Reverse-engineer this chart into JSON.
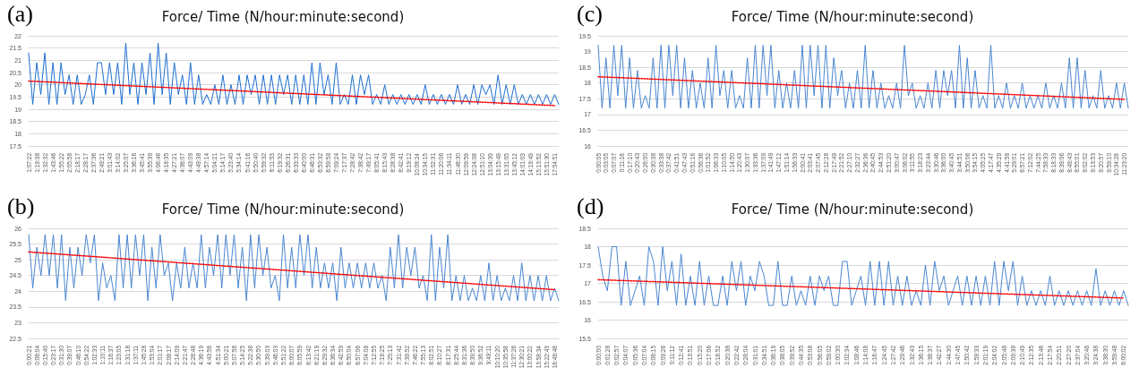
{
  "chart_data": [
    {
      "type": "line",
      "title": "Force/ Time (N/hour:minute:second)",
      "annotations": [
        "(a)"
      ],
      "ylim": [
        17.5,
        22
      ],
      "yticks": [
        17.5,
        18,
        18.5,
        19,
        19.5,
        20,
        20.5,
        21,
        21.5,
        22
      ],
      "grid": "y",
      "marker": "none",
      "categories": [
        "1:07:22",
        null,
        "1:19:38",
        null,
        "1:32:32",
        null,
        "1:43:46",
        null,
        "1:55:22",
        null,
        "2:05:58",
        null,
        "2:18:17",
        null,
        "2:28:17",
        null,
        "2:37:36",
        null,
        "2:49:21",
        null,
        "3:01:43",
        null,
        "3:14:02",
        null,
        "3:25:07",
        null,
        "3:36:16",
        null,
        "3:45:41",
        null,
        "3:55:39",
        null,
        "4:06:46",
        null,
        "4:18:35",
        null,
        "4:27:21",
        null,
        "4:36:07",
        null,
        "4:43:09",
        null,
        "4:49:38",
        null,
        "4:57:14",
        null,
        "5:04:21",
        null,
        "5:14:17",
        null,
        "5:23:40",
        null,
        "5:34:14",
        null,
        "5:41:16",
        null,
        "5:50:40",
        null,
        "5:59:32",
        null,
        "6:11:53",
        null,
        "6:19:32",
        null,
        "6:26:31",
        null,
        "6:33:33",
        null,
        "6:40:00",
        null,
        "6:46:31",
        null,
        "6:53:32",
        null,
        "6:59:58",
        null,
        "7:09:24",
        null,
        "7:17:37",
        null,
        "7:28:42",
        null,
        "7:38:42",
        null,
        "7:49:17",
        null,
        "8:05:41",
        null,
        "8:15:43",
        null,
        "8:28:38",
        null,
        "8:42:41",
        null,
        "9:19:12",
        null,
        "10:08:24",
        null,
        "10:34:15",
        null,
        "11:02:31",
        null,
        "11:20:06",
        null,
        "11:34:11",
        null,
        "11:46:30",
        null,
        "12:09:59",
        null,
        "12:24:08",
        null,
        "12:51:10",
        null,
        "13:04:39",
        null,
        "13:15:49",
        null,
        "13:31:05",
        null,
        "13:45:12",
        null,
        "14:01:03",
        null,
        "14:19:49",
        null,
        "15:13:52",
        null,
        "15:51:30",
        null,
        "17:54:51",
        null
      ],
      "series": [
        {
          "color": "#1f6fd0",
          "values": [
            21.3,
            19.2,
            20.9,
            19.6,
            21.3,
            19.2,
            20.9,
            19.2,
            20.9,
            19.6,
            20.4,
            19.2,
            20.4,
            19.2,
            19.6,
            20.4,
            19.2,
            20.9,
            20.9,
            19.6,
            20.9,
            19.6,
            20.9,
            19.2,
            21.7,
            19.6,
            20.9,
            19.2,
            20.9,
            19.6,
            21.3,
            19.2,
            21.7,
            19.6,
            21.3,
            19.2,
            20.9,
            19.6,
            20.4,
            19.2,
            20.9,
            19.2,
            20.4,
            19.2,
            19.6,
            19.2,
            20.0,
            19.2,
            20.4,
            19.2,
            20.0,
            19.2,
            20.4,
            19.2,
            20.4,
            19.6,
            20.4,
            19.2,
            20.4,
            19.2,
            20.4,
            19.2,
            20.4,
            19.6,
            20.4,
            19.2,
            20.4,
            19.2,
            20.4,
            19.2,
            20.9,
            19.2,
            20.9,
            19.6,
            20.4,
            19.2,
            20.9,
            19.2,
            19.6,
            19.2,
            20.4,
            19.2,
            20.4,
            19.6,
            20.4,
            19.2,
            19.6,
            19.2,
            20.0,
            19.2,
            19.6,
            19.2,
            19.6,
            19.2,
            19.6,
            19.2,
            19.6,
            19.2,
            20.0,
            19.2,
            19.6,
            19.2,
            19.6,
            19.2,
            19.6,
            19.2,
            20.0,
            19.2,
            19.6,
            19.2,
            20.0,
            19.2,
            20.0,
            19.6,
            20.0,
            19.2,
            20.4,
            19.2,
            20.0,
            19.2,
            20.0,
            19.2,
            19.6,
            19.2,
            19.6,
            19.2,
            19.6,
            19.2,
            19.6,
            19.2,
            19.6,
            19.2
          ]
        },
        {
          "color": "#ff0000",
          "line_style": "dotted",
          "x": [
            "1:07:22",
            "17:54:51"
          ],
          "values": [
            20.15,
            19.15
          ]
        }
      ]
    },
    {
      "type": "line",
      "title": "Force/ Time (N/hour:minute:second)",
      "annotations": [
        "(c)"
      ],
      "ylim": [
        16,
        19.5
      ],
      "yticks": [
        16,
        16.5,
        17,
        17.5,
        18,
        18.5,
        19,
        19.5
      ],
      "grid": "y",
      "marker": "none",
      "categories": [
        "0:00:05",
        null,
        "0:03:05",
        null,
        "0:07:07",
        null,
        "0:11:16",
        null,
        "0:17:10",
        null,
        "0:20:43",
        null,
        "0:26:00",
        null,
        "0:30:38",
        null,
        "0:33:38",
        null,
        "0:37:42",
        null,
        "0:41:51",
        null,
        "0:47:43",
        null,
        "0:51:16",
        null,
        "0:56:36",
        null,
        "1:01:52",
        null,
        "1:06:33",
        null,
        "1:10:05",
        null,
        "1:14:50",
        null,
        "1:20:43",
        null,
        "1:30:07",
        null,
        "1:33:36",
        null,
        "1:37:09",
        null,
        "1:41:49",
        null,
        "1:47:12",
        null,
        "1:51:14",
        null,
        "1:56:33",
        null,
        "2:00:41",
        null,
        "2:03:41",
        null,
        "2:07:45",
        null,
        "2:12:28",
        null,
        "2:17:49",
        null,
        "2:21:52",
        null,
        "2:27:10",
        null,
        "2:32:27",
        null,
        "2:36:36",
        null,
        "2:40:45",
        null,
        "2:44:53",
        null,
        "2:51:20",
        null,
        "3:00:47",
        null,
        "3:06:02",
        null,
        "3:11:55",
        null,
        "3:18:23",
        null,
        "3:23:44",
        null,
        "3:30:46",
        null,
        "3:36:00",
        null,
        "3:40:45",
        null,
        "3:44:51",
        null,
        "3:50:06",
        null,
        "3:54:15",
        null,
        "4:05:25",
        null,
        "4:17:47",
        null,
        "4:35:29",
        null,
        "4:41:58",
        null,
        "5:29:01",
        null,
        "6:57:21",
        null,
        "7:12:02",
        null,
        "7:44:25",
        null,
        "7:58:33",
        null,
        "8:18:33",
        null,
        "8:39:06",
        null,
        "8:49:43",
        null,
        "8:55:01",
        null,
        "9:02:02",
        null,
        "9:13:53",
        null,
        "9:20:57",
        null,
        "9:59:10",
        null,
        "10:34:28",
        null,
        "11:23:20",
        null
      ],
      "series": [
        {
          "color": "#4a86d0",
          "values": [
            19.2,
            17.2,
            18.8,
            17.2,
            19.2,
            17.6,
            19.2,
            17.2,
            18.8,
            17.2,
            18.4,
            17.2,
            17.6,
            17.2,
            18.8,
            17.2,
            19.2,
            17.2,
            19.2,
            17.6,
            19.2,
            17.2,
            18.8,
            17.2,
            18.4,
            17.2,
            18.0,
            17.2,
            18.8,
            17.2,
            19.2,
            17.6,
            18.4,
            17.2,
            18.4,
            17.2,
            17.6,
            17.2,
            18.8,
            17.2,
            19.2,
            17.2,
            19.2,
            17.6,
            19.2,
            17.2,
            18.4,
            17.2,
            18.0,
            17.2,
            18.4,
            17.2,
            19.2,
            17.2,
            19.2,
            17.6,
            19.2,
            17.2,
            19.2,
            17.2,
            18.8,
            17.6,
            18.4,
            17.2,
            18.0,
            17.2,
            18.4,
            17.2,
            19.2,
            17.2,
            18.4,
            17.2,
            18.0,
            17.2,
            17.6,
            17.2,
            18.0,
            17.2,
            19.2,
            17.6,
            18.0,
            17.2,
            17.6,
            17.2,
            18.0,
            17.2,
            18.4,
            17.2,
            18.4,
            17.6,
            18.4,
            17.2,
            19.2,
            17.2,
            18.8,
            17.2,
            18.4,
            17.2,
            17.6,
            17.2,
            19.2,
            17.2,
            17.6,
            17.2,
            18.0,
            17.2,
            17.6,
            17.2,
            18.0,
            17.2,
            17.6,
            17.2,
            17.6,
            17.2,
            18.0,
            17.2,
            17.6,
            17.2,
            18.0,
            17.2,
            18.8,
            17.2,
            18.8,
            17.2,
            18.4,
            17.2,
            17.6,
            17.2,
            18.4,
            17.2,
            17.6,
            17.2,
            18.0,
            17.2,
            18.0,
            17.2
          ]
        },
        {
          "color": "#ff0000",
          "line_style": "dotted",
          "x": [
            "0:00:05",
            "11:23:20"
          ],
          "values": [
            18.2,
            17.48
          ]
        }
      ]
    },
    {
      "type": "line",
      "title": "Force/ Time (N/hour:minute:second)",
      "annotations": [
        "(b)"
      ],
      "ylim": [
        22.5,
        26
      ],
      "yticks": [
        22.5,
        23,
        23.5,
        24,
        24.5,
        25,
        25.5,
        26
      ],
      "grid": "y",
      "marker": "none",
      "categories": [
        "0:00:21",
        null,
        "0:08:04",
        null,
        "0:15:40",
        null,
        "0:23:17",
        null,
        "0:31:30",
        null,
        "0:39:07",
        null,
        "0:46:10",
        null,
        "0:54:22",
        null,
        "1:02:33",
        null,
        "1:10:11",
        null,
        "1:16:37",
        null,
        "1:23:05",
        null,
        "1:31:18",
        null,
        "1:37:11",
        null,
        "1:45:28",
        null,
        "1:53:04",
        null,
        "2:01:17",
        null,
        "2:08:17",
        null,
        "2:14:09",
        null,
        "2:21:47",
        null,
        "2:28:48",
        null,
        "4:36:19",
        null,
        "4:43:56",
        null,
        "4:51:34",
        null,
        "5:00:21",
        null,
        "5:07:58",
        null,
        "5:14:25",
        null,
        "5:22:38",
        null,
        "5:30:50",
        null,
        "5:39:03",
        null,
        "5:46:03",
        null,
        "5:51:22",
        null,
        "6:00:07",
        null,
        "6:05:59",
        null,
        "6:13:42",
        null,
        "6:21:19",
        null,
        "6:29:32",
        null,
        "6:36:34",
        null,
        "6:42:59",
        null,
        "6:50:04",
        null,
        "6:57:06",
        null,
        "7:04:08",
        null,
        "7:12:55",
        null,
        "7:19:25",
        null,
        "7:25:13",
        null,
        "7:31:42",
        null,
        "7:39:52",
        null,
        "7:46:22",
        null,
        "7:55:13",
        null,
        "8:02:51",
        null,
        "8:10:27",
        null,
        "8:17:31",
        null,
        "8:25:44",
        null,
        "8:31:36",
        null,
        "8:39:50",
        null,
        "9:36:52",
        null,
        "9:49:11",
        null,
        "10:10:20",
        null,
        "10:35:58",
        null,
        "11:37:26",
        null,
        "12:30:21",
        null,
        "13:00:22",
        null,
        "13:58:34",
        null,
        "15:22:43",
        null,
        "16:49:48",
        null
      ],
      "series": [
        {
          "color": "#4a86d0",
          "values": [
            25.8,
            24.1,
            25.4,
            24.5,
            25.8,
            24.5,
            25.8,
            24.1,
            25.8,
            23.7,
            25.4,
            24.1,
            25.4,
            24.5,
            25.8,
            24.9,
            25.8,
            23.7,
            24.9,
            24.1,
            24.5,
            23.7,
            25.8,
            24.1,
            25.8,
            24.1,
            25.8,
            24.5,
            25.8,
            23.7,
            25.4,
            24.1,
            25.8,
            24.5,
            24.9,
            23.7,
            24.9,
            24.1,
            25.4,
            24.1,
            24.9,
            24.1,
            25.8,
            24.1,
            25.4,
            24.5,
            25.8,
            24.1,
            25.8,
            24.5,
            25.8,
            24.1,
            25.4,
            23.7,
            25.8,
            24.1,
            25.8,
            24.5,
            25.4,
            24.1,
            24.5,
            23.7,
            25.8,
            24.1,
            25.4,
            24.1,
            25.8,
            24.5,
            25.8,
            24.1,
            25.4,
            24.1,
            24.9,
            24.1,
            24.9,
            23.7,
            25.4,
            24.1,
            24.9,
            24.1,
            24.9,
            24.1,
            24.9,
            24.1,
            24.9,
            24.1,
            24.5,
            23.7,
            25.4,
            24.1,
            25.8,
            24.1,
            25.4,
            24.5,
            25.4,
            24.1,
            24.5,
            23.7,
            25.8,
            23.7,
            25.4,
            24.1,
            25.8,
            23.7,
            24.5,
            23.7,
            24.5,
            23.7,
            24.1,
            23.7,
            24.5,
            23.7,
            24.9,
            23.7,
            24.5,
            23.7,
            24.1,
            23.7,
            24.5,
            23.7,
            24.9,
            23.7,
            24.5,
            23.7,
            24.5,
            23.7,
            24.5,
            23.7,
            24.1,
            23.7
          ]
        },
        {
          "color": "#ff0000",
          "line_style": "dotted",
          "x": [
            "0:00:21",
            "16:49:48"
          ],
          "values": [
            25.25,
            24.05
          ]
        }
      ]
    },
    {
      "type": "line",
      "title": "Force/ Time (N/hour:minute:second)",
      "annotations": [
        "(d)"
      ],
      "ylim": [
        15.5,
        18.5
      ],
      "yticks": [
        15.5,
        16,
        16.5,
        17,
        17.5,
        18,
        18.5
      ],
      "grid": "y",
      "marker": "none",
      "categories": [
        "0:00:00",
        null,
        "0:01:28",
        null,
        "0:02:57",
        null,
        "0:04:07",
        null,
        "0:05:36",
        null,
        "0:07:04",
        null,
        "0:08:15",
        null,
        "0:09:26",
        null,
        "0:11:12",
        null,
        "0:12:41",
        null,
        "0:13:51",
        null,
        "0:15:20",
        null,
        "0:17:06",
        null,
        "0:18:52",
        null,
        "0:20:38",
        null,
        "0:22:42",
        null,
        "0:28:04",
        null,
        "0:31:01",
        null,
        "0:34:51",
        null,
        "0:36:19",
        null,
        "0:38:05",
        null,
        "0:39:52",
        null,
        "0:44:35",
        null,
        "0:53:08",
        null,
        "0:56:05",
        null,
        "0:59:02",
        null,
        "1:00:30",
        null,
        "1:02:34",
        null,
        "1:08:46",
        null,
        "1:14:08",
        null,
        "1:16:47",
        null,
        "1:24:45",
        null,
        "1:27:42",
        null,
        "1:29:46",
        null,
        "1:32:43",
        null,
        "1:36:15",
        null,
        "1:38:37",
        null,
        "1:42:27",
        null,
        "1:44:30",
        null,
        "1:47:45",
        null,
        "1:50:42",
        null,
        "1:59:33",
        null,
        "2:01:19",
        null,
        "2:04:02",
        null,
        "2:05:48",
        null,
        "2:09:38",
        null,
        "2:10:49",
        null,
        "2:12:35",
        null,
        "2:13:46",
        null,
        "2:17:54",
        null,
        "2:20:51",
        null,
        "2:27:20",
        null,
        "2:37:04",
        null,
        "3:20:48",
        null,
        "3:24:38",
        null,
        "3:38:30",
        null,
        "3:59:48",
        null,
        "6:00:02",
        null
      ],
      "series": [
        {
          "color": "#4a86d0",
          "values": [
            18.0,
            17.2,
            16.8,
            18.0,
            18.0,
            16.4,
            17.6,
            16.4,
            16.8,
            17.2,
            16.4,
            18.0,
            17.6,
            16.4,
            18.0,
            16.8,
            17.6,
            16.4,
            17.8,
            16.4,
            17.2,
            16.4,
            17.6,
            16.4,
            17.2,
            16.4,
            16.4,
            17.2,
            16.4,
            17.6,
            16.8,
            17.6,
            16.4,
            17.2,
            16.8,
            17.6,
            17.2,
            16.4,
            16.4,
            17.6,
            16.4,
            16.4,
            17.2,
            16.4,
            16.8,
            16.4,
            17.2,
            16.4,
            17.2,
            16.8,
            17.2,
            16.4,
            16.4,
            17.6,
            17.6,
            16.4,
            16.8,
            17.2,
            16.4,
            17.6,
            16.4,
            17.6,
            16.4,
            17.6,
            16.4,
            17.2,
            16.4,
            17.2,
            16.4,
            16.8,
            16.4,
            17.5,
            16.4,
            17.6,
            16.8,
            17.2,
            16.4,
            16.8,
            17.2,
            16.4,
            17.2,
            16.4,
            17.2,
            16.4,
            17.2,
            16.4,
            17.6,
            16.4,
            17.6,
            16.8,
            17.6,
            16.4,
            17.2,
            16.4,
            16.8,
            16.4,
            16.8,
            16.4,
            17.2,
            16.4,
            16.8,
            16.4,
            16.8,
            16.4,
            16.8,
            16.4,
            16.8,
            16.4,
            17.4,
            16.4,
            16.8,
            16.4,
            16.8,
            16.4,
            16.8,
            16.4
          ]
        },
        {
          "color": "#ff0000",
          "line_style": "dotted",
          "x": [
            "0:00:00",
            "6:00:02"
          ],
          "values": [
            17.1,
            16.6
          ]
        }
      ]
    }
  ]
}
